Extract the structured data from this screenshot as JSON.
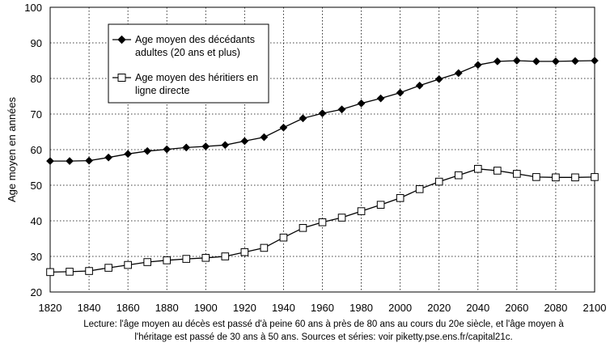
{
  "chart_data": {
    "type": "line",
    "title": "",
    "xlabel": "",
    "ylabel": "Age moyen en années",
    "xlim": [
      1820,
      2100
    ],
    "ylim": [
      20,
      100
    ],
    "x_ticks": [
      "1820",
      "1840",
      "1860",
      "1880",
      "1900",
      "1920",
      "1940",
      "1960",
      "1980",
      "2000",
      "2020",
      "2040",
      "2060",
      "2080",
      "2100"
    ],
    "y_ticks": [
      "20",
      "30",
      "40",
      "50",
      "60",
      "70",
      "80",
      "90",
      "100"
    ],
    "grid": "dotted",
    "legend_placement": "top-left",
    "x": [
      1820,
      1830,
      1840,
      1850,
      1860,
      1870,
      1880,
      1890,
      1900,
      1910,
      1920,
      1930,
      1940,
      1950,
      1960,
      1970,
      1980,
      1990,
      2000,
      2010,
      2020,
      2030,
      2040,
      2050,
      2060,
      2070,
      2080,
      2090,
      2100
    ],
    "series": [
      {
        "name": "Age moyen des décédants adultes (20 ans et plus)",
        "legend_lines": [
          "Age moyen des décédants",
          "adultes (20 ans et plus)"
        ],
        "marker": "filled-diamond",
        "values": [
          56.8,
          56.8,
          56.9,
          57.8,
          58.8,
          59.6,
          60.1,
          60.6,
          60.9,
          61.3,
          62.4,
          63.5,
          66.2,
          68.8,
          70.2,
          71.3,
          73.0,
          74.4,
          76.0,
          78.0,
          79.8,
          81.5,
          83.8,
          84.8,
          85.0,
          84.8,
          84.8,
          84.9,
          85.0
        ]
      },
      {
        "name": "Age moyen des héritiers en ligne directe",
        "legend_lines": [
          "Age moyen des héritiers en",
          "ligne directe"
        ],
        "marker": "open-square",
        "values": [
          25.6,
          25.7,
          25.9,
          26.8,
          27.6,
          28.4,
          28.9,
          29.3,
          29.6,
          30.0,
          31.2,
          32.4,
          35.3,
          38.0,
          39.6,
          40.9,
          42.7,
          44.5,
          46.4,
          48.9,
          51.0,
          52.8,
          54.6,
          54.1,
          53.2,
          52.3,
          52.2,
          52.2,
          52.3
        ]
      }
    ]
  },
  "caption": {
    "line1": "Lecture: l'âge moyen au décès est passé d'à peine 60 ans à près de 80 ans au cours du 20e siècle, et l'âge moyen à",
    "line2": "l'héritage est passé de 30 ans à 50 ans. Sources et séries: voir piketty.pse.ens.fr/capital21c."
  },
  "colors": {
    "line": "#000000",
    "grid": "#000000",
    "open_marker_fill": "#ffffff",
    "background": "#ffffff"
  }
}
